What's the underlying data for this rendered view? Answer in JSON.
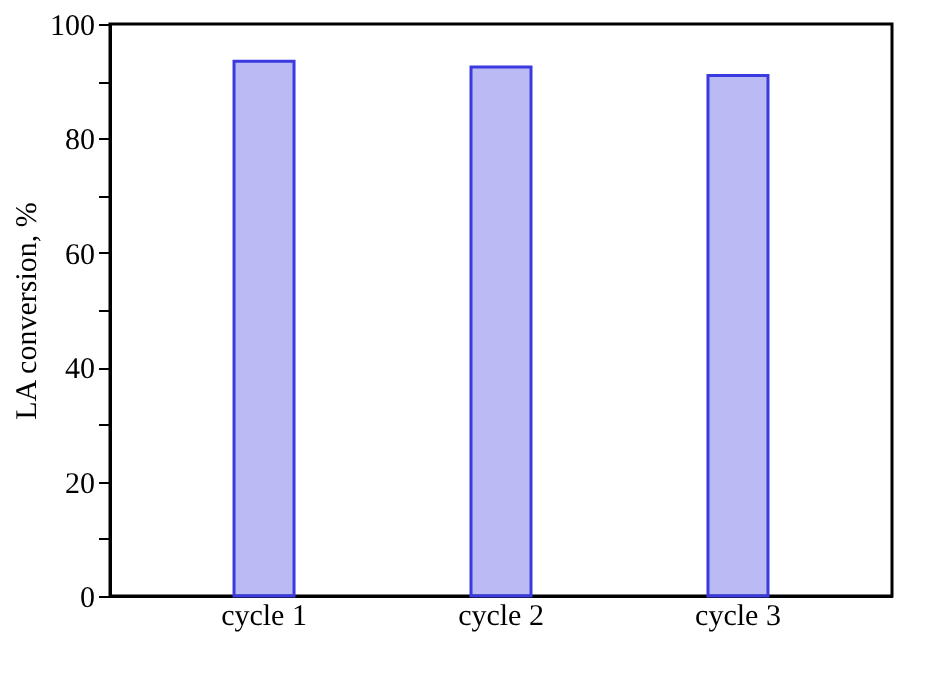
{
  "chart_data": {
    "type": "bar",
    "ylabel": "LA conversion, %",
    "categories": [
      "cycle 1",
      "cycle 2",
      "cycle 3"
    ],
    "values": [
      93.5,
      92.5,
      91.0
    ],
    "color": "#3a3ae0",
    "ylim": [
      0,
      100
    ],
    "yticks": [
      0,
      {
        "value": 10,
        "label": null
      },
      20,
      {
        "value": 30,
        "label": null
      },
      40,
      {
        "value": 50,
        "label": null
      },
      60,
      {
        "value": 70,
        "label": null
      },
      80,
      {
        "value": 90,
        "label": null
      },
      100
    ],
    "grid": false
  }
}
